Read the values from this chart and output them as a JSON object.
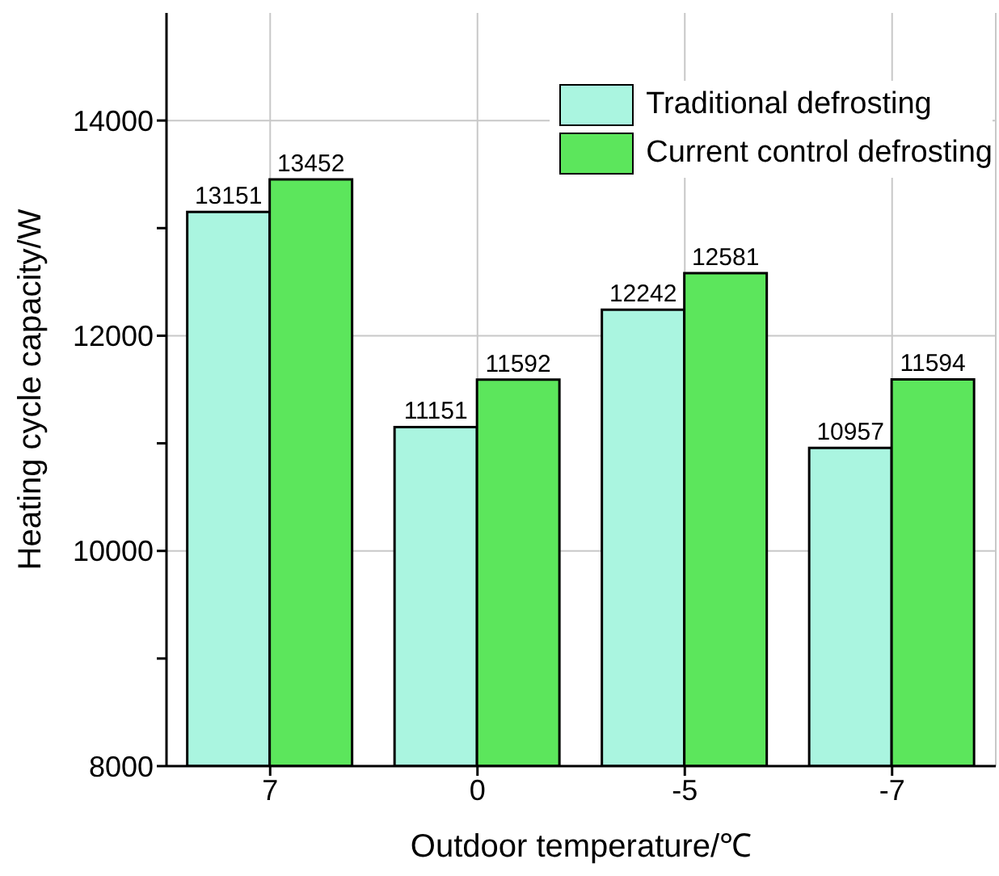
{
  "chart_data": {
    "type": "bar",
    "xlabel": "Outdoor temperature/℃",
    "ylabel": "Heating cycle capacity/W",
    "categories": [
      "7",
      "0",
      "-5",
      "-7"
    ],
    "series": [
      {
        "name": "Traditional defrosting",
        "color": "#aaf5e0",
        "values": [
          13151,
          11151,
          12242,
          10957
        ]
      },
      {
        "name": "Current control defrosting",
        "color": "#5ce65c",
        "values": [
          13452,
          11592,
          12581,
          11594
        ]
      }
    ],
    "ylim": [
      8000,
      15000
    ],
    "yticks": [
      8000,
      {
        "value": 9000,
        "label": null
      },
      10000,
      {
        "value": 11000,
        "label": null
      },
      12000,
      {
        "value": 13000,
        "label": null
      },
      14000
    ],
    "grid": true,
    "legend": "top right",
    "data_labels": true
  }
}
